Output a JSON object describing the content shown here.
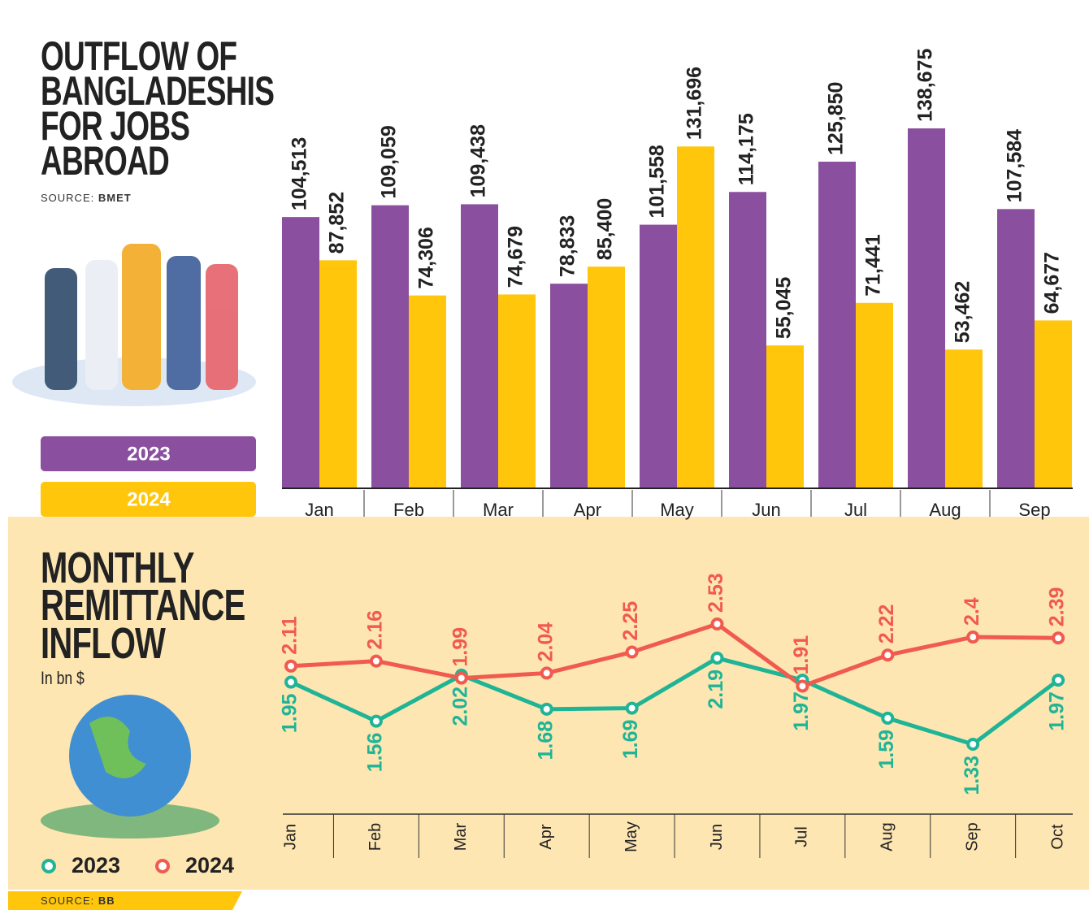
{
  "chart_data": [
    {
      "type": "bar",
      "title": "OUTFLOW OF BANGLADESHIS FOR JOBS ABROAD",
      "source_label": "SOURCE:",
      "source": "BMET",
      "categories": [
        "Jan",
        "Feb",
        "Mar",
        "Apr",
        "May",
        "Jun",
        "Jul",
        "Aug",
        "Sep"
      ],
      "series": [
        {
          "name": "2023",
          "color": "#8a4f9e",
          "values": [
            104513,
            109059,
            109438,
            78833,
            101558,
            114175,
            125850,
            138675,
            107584
          ],
          "value_labels": [
            "104,513",
            "109,059",
            "109,438",
            "78,833",
            "101,558",
            "114,175",
            "125,850",
            "138,675",
            "107,584"
          ]
        },
        {
          "name": "2024",
          "color": "#ffc60b",
          "values": [
            87852,
            74306,
            74679,
            85400,
            131696,
            55045,
            71441,
            53462,
            64677
          ],
          "value_labels": [
            "87,852",
            "74,306",
            "74,679",
            "85,400",
            "131,696",
            "55,045",
            "71,441",
            "53,462",
            "64,677"
          ]
        }
      ]
    },
    {
      "type": "line",
      "title": "MONTHLY REMITTANCE INFLOW",
      "subtitle": "In bn $",
      "source_label": "SOURCE:",
      "source": "BB",
      "categories": [
        "Jan",
        "Feb",
        "Mar",
        "Apr",
        "May",
        "Jun",
        "Jul",
        "Aug",
        "Sep",
        "Oct"
      ],
      "series": [
        {
          "name": "2023",
          "color": "#20b496",
          "values": [
            1.95,
            1.56,
            2.02,
            1.68,
            1.69,
            2.19,
            1.97,
            1.59,
            1.33,
            1.97
          ]
        },
        {
          "name": "2024",
          "color": "#f05a4f",
          "values": [
            2.11,
            2.16,
            1.99,
            2.04,
            2.25,
            2.53,
            1.91,
            2.22,
            2.4,
            2.39
          ]
        }
      ]
    }
  ]
}
